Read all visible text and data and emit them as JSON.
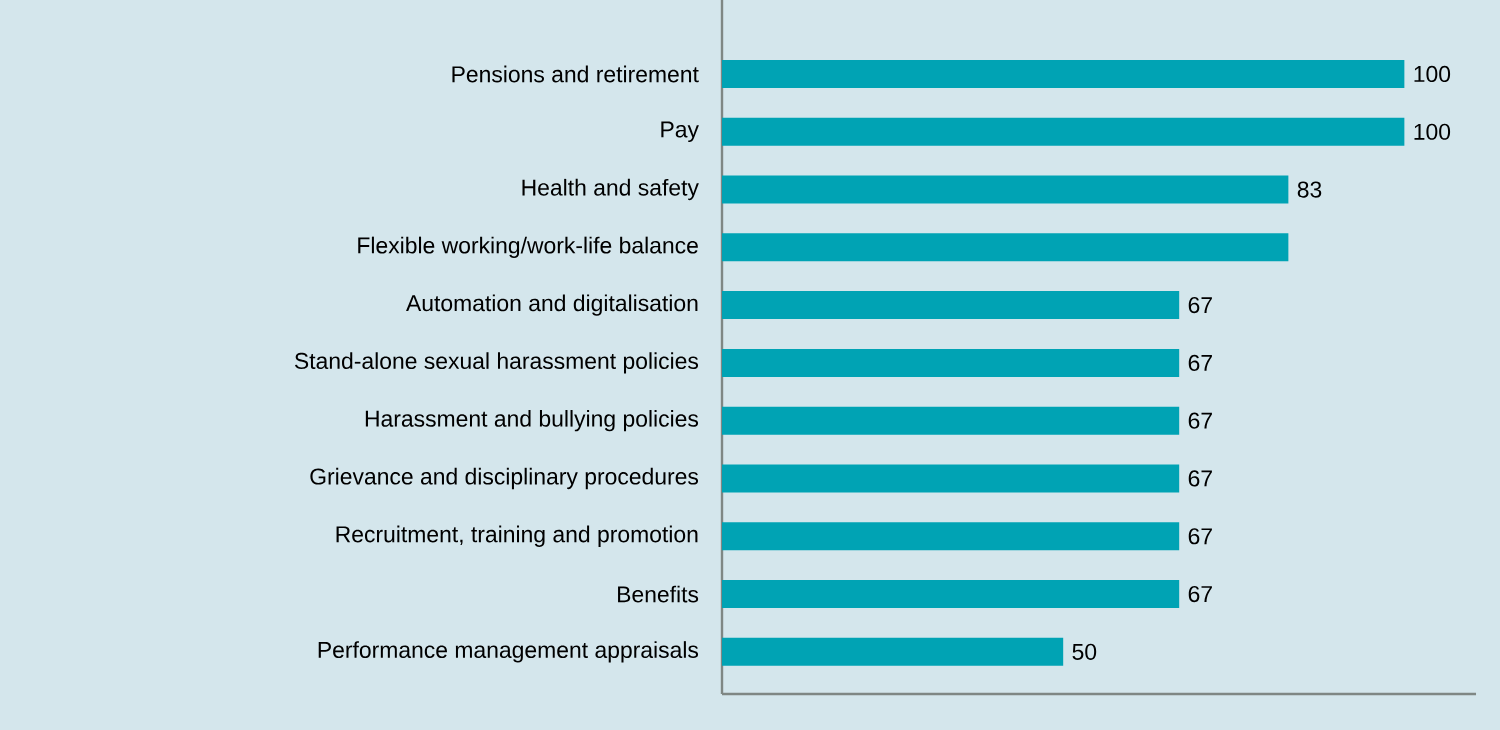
{
  "chart_data": {
    "type": "bar",
    "orientation": "horizontal",
    "color": "#00a3b4",
    "categories": [
      "Pensions and retirement",
      "Pay",
      "Health and safety",
      "Flexible working/work-life balance",
      "Automation and digitalisation",
      "Stand-alone sexual harassment policies",
      "Harassment and bullying policies",
      "Grievance and disciplinary procedures",
      "Recruitment, training and promotion",
      "Benefits",
      "Performance management appraisals"
    ],
    "values": [
      100,
      100,
      83,
      83,
      67,
      67,
      67,
      67,
      67,
      67,
      50
    ],
    "value_labels": [
      "100",
      "100",
      "83",
      null,
      "67",
      "67",
      "67",
      "67",
      "67",
      "67",
      "50"
    ]
  }
}
